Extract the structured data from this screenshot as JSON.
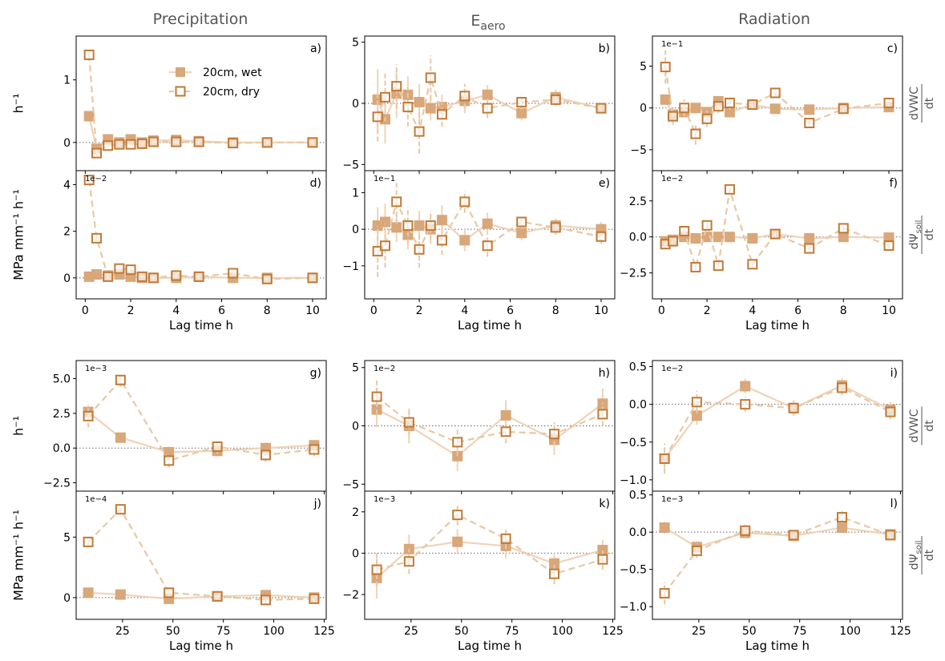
{
  "column_titles": [
    "Precipitation",
    "E",
    "Radiation"
  ],
  "column_title_sub": "aero",
  "row_left_labels": [
    "h⁻¹",
    "MPa mm⁻¹ h⁻¹",
    "h⁻¹",
    "MPa mm⁻¹ h⁻¹"
  ],
  "row_right_labels": [
    {
      "num": "dVWC",
      "den": "dt"
    },
    {
      "num": "dΨ",
      "sub": "soil",
      "den": "dt"
    },
    {
      "num": "dVWC",
      "den": "dt"
    },
    {
      "num": "dΨ",
      "sub": "soil",
      "den": "dt"
    }
  ],
  "xlabel": "Lag time h",
  "legend": {
    "wet": "20cm, wet",
    "dry": "20cm, dry"
  },
  "colors": {
    "wet": "#d8a77a",
    "dry": "#c07a36",
    "wet_line": "#efd3b8",
    "dry_line": "#e8c8a6"
  },
  "chart_data": [
    {
      "type": "scatter",
      "panel": "a)",
      "sci": "",
      "x": [
        0.17,
        0.5,
        1,
        1.5,
        2,
        2.5,
        3,
        4,
        5,
        6.5,
        8,
        10
      ],
      "xlim": [
        -0.4,
        10.6
      ],
      "xticks": [
        0,
        2,
        4,
        6,
        8,
        10
      ],
      "ylim": [
        -0.45,
        1.7
      ],
      "yticks": [
        0,
        1
      ],
      "yticklabels": [
        "0",
        "1"
      ],
      "series": [
        {
          "name": "20cm, wet",
          "values": [
            0.42,
            -0.1,
            0.05,
            0.0,
            0.05,
            0.0,
            0.03,
            0.04,
            0.02,
            0.0,
            0.0,
            0.0
          ],
          "err": [
            0.03,
            0.03,
            0.03,
            0.03,
            0.03,
            0.03,
            0.03,
            0.03,
            0.03,
            0.03,
            0.03,
            0.03
          ]
        },
        {
          "name": "20cm, dry",
          "values": [
            1.4,
            -0.17,
            -0.05,
            -0.03,
            -0.03,
            -0.02,
            0.01,
            0.01,
            0.01,
            -0.01,
            0.0,
            0.0
          ],
          "err": [
            0.04,
            0.04,
            0.03,
            0.03,
            0.03,
            0.03,
            0.03,
            0.03,
            0.03,
            0.03,
            0.03,
            0.03
          ]
        }
      ]
    },
    {
      "type": "scatter",
      "panel": "b)",
      "sci": "",
      "x": [
        0.17,
        0.5,
        1,
        1.5,
        2,
        2.5,
        3,
        4,
        5,
        6.5,
        8,
        10
      ],
      "xlim": [
        -0.4,
        10.6
      ],
      "xticks": [
        0,
        2,
        4,
        6,
        8,
        10
      ],
      "ylim": [
        -5.5,
        5.5
      ],
      "yticks": [
        -5,
        0,
        5
      ],
      "yticklabels": [
        "−5",
        "0",
        "5"
      ],
      "series": [
        {
          "name": "20cm, wet",
          "values": [
            0.3,
            -1.3,
            0.8,
            0.7,
            0.1,
            -0.4,
            -0.3,
            0.2,
            0.7,
            -0.8,
            0.5,
            -0.4
          ],
          "err": [
            2.5,
            2.0,
            2.0,
            1.5,
            1.5,
            1.0,
            1.0,
            1.0,
            0.8,
            0.6,
            0.6,
            0.4
          ]
        },
        {
          "name": "20cm, dry",
          "values": [
            -1.1,
            0.5,
            1.4,
            -0.3,
            -2.3,
            2.1,
            -0.9,
            0.6,
            -0.4,
            0.1,
            0.3,
            -0.4
          ],
          "err": [
            2.0,
            2.0,
            1.8,
            1.6,
            1.8,
            1.8,
            1.0,
            1.0,
            0.8,
            0.6,
            0.5,
            0.4
          ]
        }
      ]
    },
    {
      "type": "scatter",
      "panel": "c)",
      "sci": "1e−1",
      "x": [
        0.17,
        0.5,
        1,
        1.5,
        2,
        2.5,
        3,
        4,
        5,
        6.5,
        8,
        10
      ],
      "xlim": [
        -0.4,
        10.6
      ],
      "xticks": [
        0,
        2,
        4,
        6,
        8,
        10
      ],
      "ylim": [
        -7.5,
        8.6
      ],
      "yticks": [
        -5,
        0,
        5
      ],
      "yticklabels": [
        "−5",
        "0",
        "5"
      ],
      "series": [
        {
          "name": "20cm, wet",
          "values": [
            1.0,
            -0.8,
            -0.5,
            0.0,
            -0.5,
            0.8,
            -0.5,
            0.4,
            -0.1,
            -0.2,
            0.0,
            0.1
          ],
          "err": [
            0.6,
            0.5,
            0.5,
            0.5,
            0.5,
            0.5,
            0.5,
            0.4,
            0.4,
            0.4,
            0.4,
            0.4
          ]
        },
        {
          "name": "20cm, dry",
          "values": [
            4.9,
            -1.0,
            0.0,
            -3.1,
            -1.3,
            0.2,
            0.6,
            0.4,
            1.8,
            -1.8,
            -0.1,
            0.6
          ],
          "err": [
            2.0,
            1.0,
            1.0,
            1.3,
            1.0,
            0.8,
            0.8,
            0.6,
            0.6,
            0.6,
            0.5,
            0.5
          ]
        }
      ]
    },
    {
      "type": "scatter",
      "panel": "d)",
      "sci": "1e−2",
      "x": [
        0.17,
        0.5,
        1,
        1.5,
        2,
        2.5,
        3,
        4,
        5,
        6.5,
        8,
        10
      ],
      "xlim": [
        -0.4,
        10.6
      ],
      "xticks": [
        0,
        2,
        4,
        6,
        8,
        10
      ],
      "ylim": [
        -0.9,
        4.6
      ],
      "yticks": [
        0,
        2,
        4
      ],
      "yticklabels": [
        "0",
        "2",
        "4"
      ],
      "series": [
        {
          "name": "20cm, wet",
          "values": [
            0.05,
            0.15,
            0.1,
            0.15,
            0.05,
            0.0,
            0.0,
            0.0,
            0.05,
            0.0,
            0.0,
            0.0
          ],
          "err": [
            0.1,
            0.1,
            0.1,
            0.1,
            0.1,
            0.1,
            0.1,
            0.1,
            0.1,
            0.1,
            0.1,
            0.1
          ]
        },
        {
          "name": "20cm, dry",
          "values": [
            4.2,
            1.7,
            0.05,
            0.4,
            0.35,
            0.05,
            0.0,
            0.1,
            0.05,
            0.2,
            -0.05,
            0.0
          ],
          "err": [
            0.15,
            0.15,
            0.1,
            0.15,
            0.15,
            0.1,
            0.1,
            0.1,
            0.1,
            0.1,
            0.1,
            0.1
          ]
        }
      ]
    },
    {
      "type": "scatter",
      "panel": "e)",
      "sci": "1e−1",
      "x": [
        0.17,
        0.5,
        1,
        1.5,
        2,
        2.5,
        3,
        4,
        5,
        6.5,
        8,
        10
      ],
      "xlim": [
        -0.4,
        10.6
      ],
      "xticks": [
        0,
        2,
        4,
        6,
        8,
        10
      ],
      "ylim": [
        -1.9,
        1.6
      ],
      "yticks": [
        -1,
        0,
        1
      ],
      "yticklabels": [
        "−1",
        "0",
        "1"
      ],
      "series": [
        {
          "name": "20cm, wet",
          "values": [
            0.1,
            0.2,
            0.05,
            -0.15,
            0.1,
            0.0,
            0.25,
            -0.3,
            0.15,
            -0.1,
            0.1,
            0.0
          ],
          "err": [
            0.5,
            0.5,
            0.4,
            0.4,
            0.4,
            0.4,
            0.4,
            0.3,
            0.3,
            0.2,
            0.2,
            0.2
          ]
        },
        {
          "name": "20cm, dry",
          "values": [
            -0.6,
            -0.45,
            0.75,
            0.1,
            -0.55,
            0.1,
            -0.3,
            0.75,
            -0.45,
            0.2,
            0.05,
            -0.2
          ],
          "err": [
            0.7,
            0.6,
            0.6,
            0.5,
            0.5,
            0.4,
            0.4,
            0.3,
            0.3,
            0.2,
            0.2,
            0.2
          ]
        }
      ]
    },
    {
      "type": "scatter",
      "panel": "f)",
      "sci": "1e−2",
      "x": [
        0.17,
        0.5,
        1,
        1.5,
        2,
        2.5,
        3,
        4,
        5,
        6.5,
        8,
        10
      ],
      "xlim": [
        -0.4,
        10.6
      ],
      "xticks": [
        0,
        2,
        4,
        6,
        8,
        10
      ],
      "ylim": [
        -4.3,
        4.6
      ],
      "yticks": [
        -2.5,
        0,
        2.5
      ],
      "yticklabels": [
        "−2.5",
        "0.0",
        "2.5"
      ],
      "series": [
        {
          "name": "20cm, wet",
          "values": [
            -0.3,
            -0.2,
            0.0,
            -0.1,
            0.0,
            0.0,
            0.0,
            -0.1,
            0.2,
            -0.1,
            0.0,
            -0.05
          ],
          "err": [
            0.2,
            0.2,
            0.2,
            0.2,
            0.2,
            0.2,
            0.2,
            0.2,
            0.2,
            0.2,
            0.2,
            0.2
          ]
        },
        {
          "name": "20cm, dry",
          "values": [
            -0.5,
            -0.3,
            0.4,
            -2.1,
            0.8,
            -2.0,
            3.3,
            -1.9,
            0.2,
            -0.8,
            0.6,
            -0.6
          ],
          "err": [
            0.2,
            0.2,
            0.2,
            0.2,
            0.2,
            0.2,
            0.2,
            0.2,
            0.2,
            0.2,
            0.2,
            0.2
          ]
        }
      ]
    },
    {
      "type": "scatter",
      "panel": "g)",
      "sci": "1e−3",
      "x": [
        8,
        24,
        48,
        72,
        96,
        120
      ],
      "xlim": [
        2,
        126
      ],
      "xticks": [
        25,
        50,
        75,
        100,
        125
      ],
      "ylim": [
        -3.1,
        6.3
      ],
      "yticks": [
        -2.5,
        0,
        2.5,
        5
      ],
      "yticklabels": [
        "−2.5",
        "0.0",
        "2.5",
        "5.0"
      ],
      "series": [
        {
          "name": "20cm, wet",
          "values": [
            2.6,
            0.75,
            -0.3,
            -0.2,
            0.0,
            0.2
          ],
          "err": [
            0.4,
            0.3,
            0.4,
            0.4,
            0.4,
            0.4
          ]
        },
        {
          "name": "20cm, dry",
          "values": [
            2.3,
            4.9,
            -0.9,
            0.1,
            -0.5,
            -0.1
          ],
          "err": [
            0.8,
            0.5,
            0.5,
            0.5,
            0.5,
            0.5
          ]
        }
      ]
    },
    {
      "type": "scatter",
      "panel": "h)",
      "sci": "1e−2",
      "x": [
        8,
        24,
        48,
        72,
        96,
        120
      ],
      "xlim": [
        2,
        126
      ],
      "xticks": [
        25,
        50,
        75,
        100,
        125
      ],
      "ylim": [
        -5.6,
        5.6
      ],
      "yticks": [
        -5,
        0,
        5
      ],
      "yticklabels": [
        "−5",
        "0",
        "5"
      ],
      "series": [
        {
          "name": "20cm, wet",
          "values": [
            1.4,
            0.0,
            -2.6,
            0.9,
            -1.2,
            1.9
          ],
          "err": [
            1.5,
            1.5,
            1.3,
            1.3,
            1.3,
            1.3
          ]
        },
        {
          "name": "20cm, dry",
          "values": [
            2.5,
            0.3,
            -1.4,
            -0.5,
            -0.7,
            1.0
          ],
          "err": [
            1.5,
            1.2,
            1.2,
            1.0,
            1.0,
            1.0
          ]
        }
      ]
    },
    {
      "type": "scatter",
      "panel": "i)",
      "sci": "1e−2",
      "x": [
        8,
        24,
        48,
        72,
        96,
        120
      ],
      "xlim": [
        2,
        126
      ],
      "xticks": [
        25,
        50,
        75,
        100,
        125
      ],
      "ylim": [
        -1.15,
        0.58
      ],
      "yticks": [
        -1,
        -0.5,
        0,
        0.5
      ],
      "yticklabels": [
        "−1.0",
        "−0.5",
        "0.0",
        "0.5"
      ],
      "series": [
        {
          "name": "20cm, wet",
          "values": [
            -0.72,
            -0.15,
            0.24,
            -0.05,
            0.25,
            -0.07
          ],
          "err": [
            0.15,
            0.12,
            0.1,
            0.1,
            0.1,
            0.1
          ]
        },
        {
          "name": "20cm, dry",
          "values": [
            -0.72,
            0.03,
            0.0,
            -0.05,
            0.22,
            -0.1
          ],
          "err": [
            0.2,
            0.15,
            0.1,
            0.1,
            0.1,
            0.1
          ]
        }
      ]
    },
    {
      "type": "scatter",
      "panel": "j)",
      "sci": "1e−4",
      "x": [
        8,
        24,
        48,
        72,
        96,
        120
      ],
      "xlim": [
        2,
        126
      ],
      "xticks": [
        25,
        50,
        75,
        100,
        125
      ],
      "ylim": [
        -1.8,
        8.8
      ],
      "yticks": [
        0,
        5
      ],
      "yticklabels": [
        "0",
        "5"
      ],
      "series": [
        {
          "name": "20cm, wet",
          "values": [
            0.4,
            0.25,
            -0.1,
            0.1,
            0.2,
            0.0
          ],
          "err": [
            0.3,
            0.3,
            0.3,
            0.3,
            0.3,
            0.3
          ]
        },
        {
          "name": "20cm, dry",
          "values": [
            4.6,
            7.3,
            0.4,
            0.1,
            -0.2,
            -0.1
          ],
          "err": [
            0.3,
            0.3,
            0.3,
            0.3,
            0.3,
            0.3
          ]
        }
      ]
    },
    {
      "type": "scatter",
      "panel": "k)",
      "sci": "1e−3",
      "x": [
        8,
        24,
        48,
        72,
        96,
        120
      ],
      "xlim": [
        2,
        126
      ],
      "xticks": [
        25,
        50,
        75,
        100,
        125
      ],
      "ylim": [
        -3.2,
        3.0
      ],
      "yticks": [
        -2,
        0,
        2
      ],
      "yticklabels": [
        "−2",
        "0",
        "2"
      ],
      "series": [
        {
          "name": "20cm, wet",
          "values": [
            -1.2,
            0.2,
            0.55,
            0.35,
            -0.5,
            0.15
          ],
          "err": [
            1.0,
            0.7,
            0.6,
            0.6,
            0.5,
            0.5
          ]
        },
        {
          "name": "20cm, dry",
          "values": [
            -0.8,
            -0.4,
            1.85,
            0.7,
            -1.0,
            -0.3
          ],
          "err": [
            0.8,
            0.6,
            0.5,
            0.5,
            0.5,
            0.5
          ]
        }
      ]
    },
    {
      "type": "scatter",
      "panel": "l)",
      "sci": "1e−3",
      "x": [
        8,
        24,
        48,
        72,
        96,
        120
      ],
      "xlim": [
        2,
        126
      ],
      "xticks": [
        25,
        50,
        75,
        100,
        125
      ],
      "ylim": [
        -1.17,
        0.55
      ],
      "yticks": [
        -1,
        -0.5,
        0,
        0.5
      ],
      "yticklabels": [
        "−1.0",
        "−0.5",
        "0.0",
        "0.5"
      ],
      "series": [
        {
          "name": "20cm, wet",
          "values": [
            0.06,
            -0.2,
            -0.01,
            -0.05,
            0.06,
            -0.03
          ],
          "err": [
            0.08,
            0.08,
            0.06,
            0.06,
            0.06,
            0.06
          ]
        },
        {
          "name": "20cm, dry",
          "values": [
            -0.82,
            -0.25,
            0.02,
            -0.04,
            0.2,
            -0.04
          ],
          "err": [
            0.15,
            0.1,
            0.08,
            0.06,
            0.08,
            0.06
          ]
        }
      ]
    }
  ]
}
